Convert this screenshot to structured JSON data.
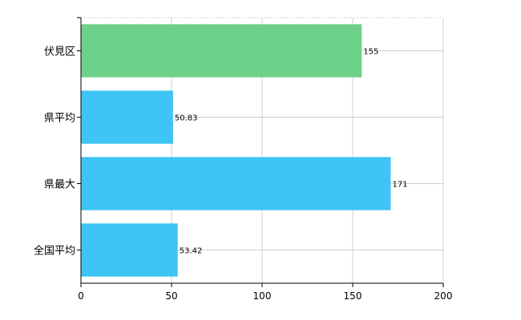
{
  "chart_data": {
    "type": "bar",
    "orientation": "horizontal",
    "categories": [
      "伏見区",
      "県平均",
      "県最大",
      "全国平均"
    ],
    "values": [
      155,
      50.83,
      171,
      53.42
    ],
    "value_labels": [
      "155",
      "50.83",
      "171",
      "53.42"
    ],
    "colors": [
      "#6dd18a",
      "#3ec4f5",
      "#3ec4f5",
      "#3ec4f5"
    ],
    "xlim": [
      0,
      200
    ],
    "x_ticks": [
      0,
      50,
      100,
      150,
      200
    ],
    "x_tick_labels": [
      "0",
      "50",
      "100",
      "150",
      "200"
    ],
    "grid": true,
    "title": "",
    "xlabel": "",
    "ylabel": ""
  }
}
